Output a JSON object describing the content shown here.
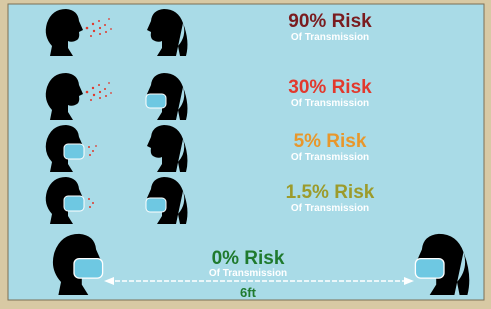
{
  "rows": [
    {
      "risk": "90% Risk",
      "subtitle": "Of Transmission"
    },
    {
      "risk": "30% Risk",
      "subtitle": "Of Transmission"
    },
    {
      "risk": "5% Risk",
      "subtitle": "Of Transmission"
    },
    {
      "risk": "1.5% Risk",
      "subtitle": "Of Transmission"
    }
  ],
  "distancing": {
    "risk": "0% Risk",
    "subtitle": "Of Transmission",
    "distance": "6ft"
  }
}
